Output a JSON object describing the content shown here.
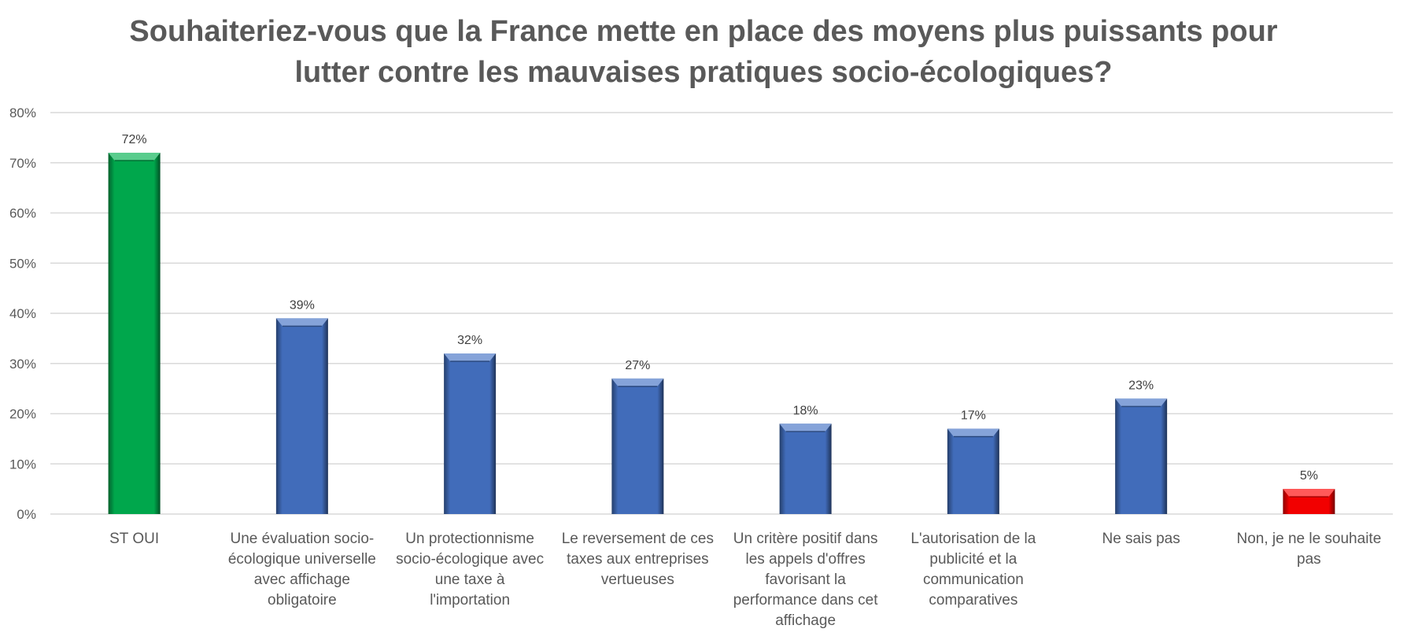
{
  "chart_data": {
    "type": "bar",
    "title_lines": [
      "Souhaiteriez-vous que la France mette en place des moyens plus puissants pour",
      "lutter contre les mauvaises pratiques socio-écologiques?"
    ],
    "categories": [
      [
        "ST OUI"
      ],
      [
        "Une évaluation socio-",
        "écologique universelle",
        "avec affichage",
        "obligatoire"
      ],
      [
        "Un protectionnisme",
        "socio-écologique avec",
        "une taxe à",
        "l'importation"
      ],
      [
        "Le reversement de ces",
        "taxes aux entreprises",
        "vertueuses"
      ],
      [
        "Un critère positif dans",
        "les appels d'offres",
        "favorisant la",
        "performance dans cet",
        "affichage"
      ],
      [
        "L'autorisation de la",
        "publicité et la",
        "communication",
        "comparatives"
      ],
      [
        "Ne sais pas"
      ],
      [
        "Non, je ne le souhaite",
        "pas"
      ]
    ],
    "values": [
      72,
      39,
      32,
      27,
      18,
      17,
      23,
      5
    ],
    "value_labels": [
      "72%",
      "39%",
      "32%",
      "27%",
      "18%",
      "17%",
      "23%",
      "5%"
    ],
    "bar_colors": [
      "#00b050",
      "#4472c4",
      "#4472c4",
      "#4472c4",
      "#4472c4",
      "#4472c4",
      "#4472c4",
      "#ff0000"
    ],
    "ylim": [
      0,
      80
    ],
    "yticks": [
      0,
      10,
      20,
      30,
      40,
      50,
      60,
      70,
      80
    ],
    "ytick_labels": [
      "0%",
      "10%",
      "20%",
      "30%",
      "40%",
      "50%",
      "60%",
      "70%",
      "80%"
    ],
    "grid": true,
    "legend": "none"
  }
}
